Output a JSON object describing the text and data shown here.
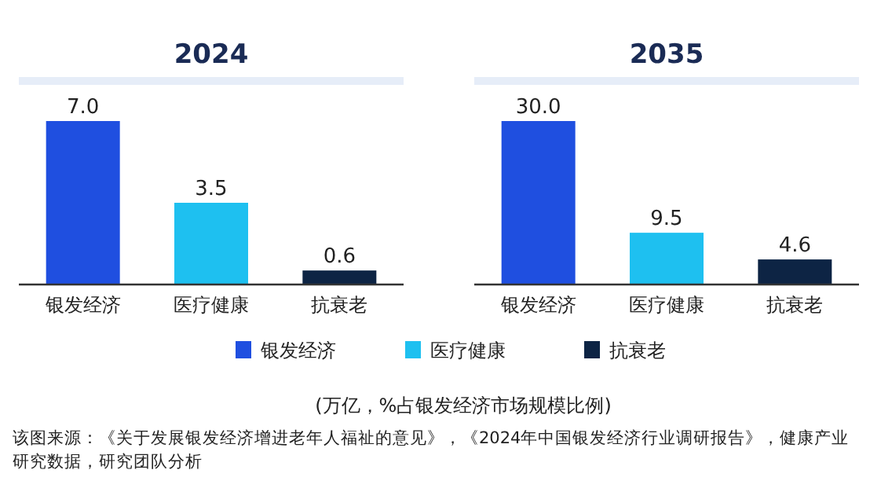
{
  "chart_data": [
    {
      "type": "bar",
      "title": "2024",
      "categories": [
        "银发经济",
        "医疗健康",
        "抗衰老"
      ],
      "stacked": true,
      "legend": "bottom",
      "series": [
        {
          "name": "银发经济",
          "color": "#1f4fe0",
          "values": [
            7.0,
            null,
            null
          ],
          "value_labels": [
            "7.0",
            null,
            null
          ]
        },
        {
          "name": "医疗健康",
          "color": "#1ec0f0",
          "values": [
            null,
            3.5,
            null
          ],
          "value_labels": [
            null,
            "3.5",
            null
          ]
        },
        {
          "name": "抗衰老",
          "color": "#0d2444",
          "values": [
            null,
            null,
            0.6
          ],
          "value_labels": [
            null,
            null,
            "0.6"
          ]
        }
      ],
      "annotations": [
        "(万亿，%占银发经济市场规模比例)",
        "该图来源：《关于发展银发经济增进老年人福祉的意见》，《2024年中国银发经济行业调研报告》，健康产业研究数据，研究团队分析"
      ]
    },
    {
      "type": "bar",
      "title": "2035",
      "categories": [
        "银发经济",
        "医疗健康",
        "抗衰老"
      ],
      "stacked": true,
      "series": [
        {
          "color": "#1f4fe0",
          "values": [
            30.0,
            null,
            null
          ],
          "value_labels": [
            "30.0",
            null,
            null
          ]
        },
        {
          "color": "#1ec0f0",
          "values": [
            null,
            9.5,
            null
          ],
          "value_labels": [
            null,
            "9.5",
            null
          ]
        },
        {
          "color": "#0d2444",
          "values": [
            null,
            null,
            4.6
          ],
          "value_labels": [
            null,
            null,
            "4.6"
          ]
        }
      ]
    }
  ]
}
